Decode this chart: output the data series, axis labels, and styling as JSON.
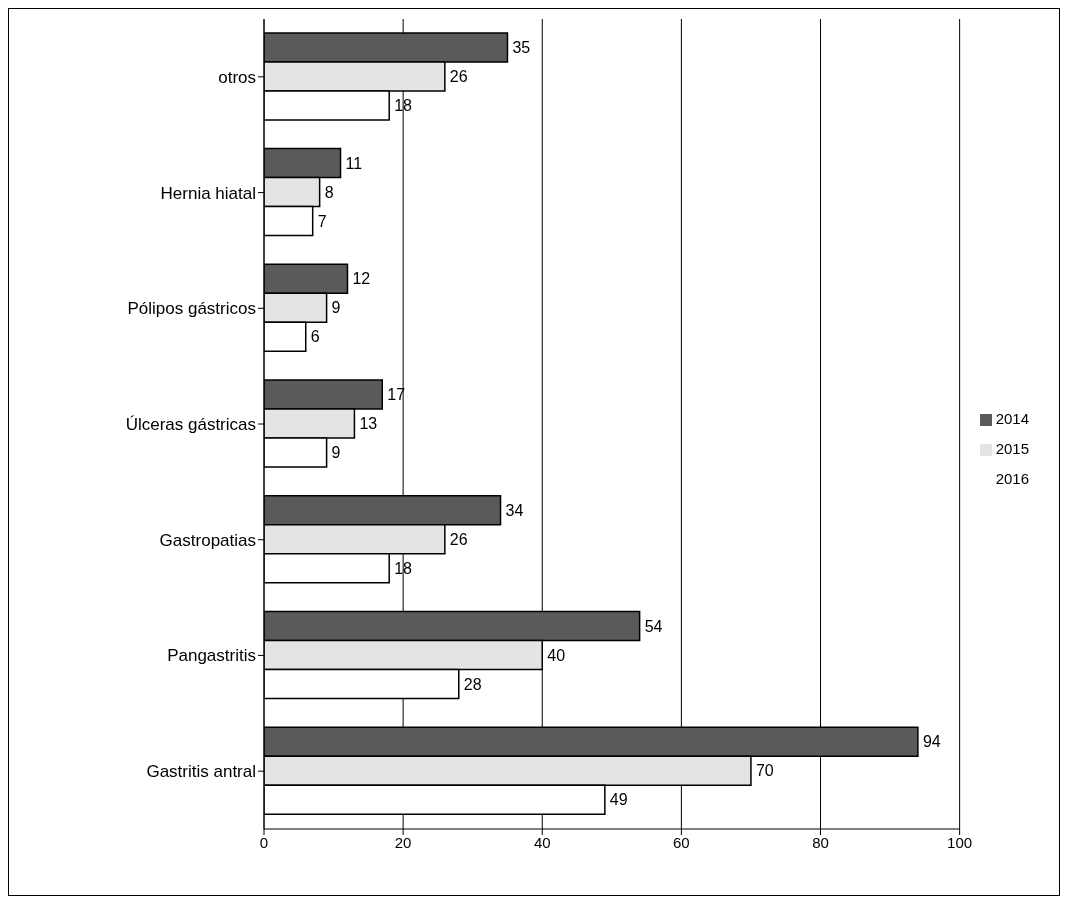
{
  "chart_data": {
    "type": "bar",
    "orientation": "horizontal",
    "categories": [
      "otros",
      "Hernia hiatal",
      "Pólipos gástricos",
      "Úlceras gástricas",
      "Gastropatias",
      "Pangastritis",
      "Gastritis antral"
    ],
    "series": [
      {
        "name": "2014",
        "color": "#5a5a5a",
        "values": [
          35,
          11,
          12,
          17,
          34,
          54,
          94
        ]
      },
      {
        "name": "2015",
        "color": "#e4e4e4",
        "values": [
          26,
          8,
          9,
          13,
          26,
          40,
          70
        ]
      },
      {
        "name": "2016",
        "color": "#ffffff",
        "values": [
          18,
          7,
          6,
          9,
          18,
          28,
          49
        ]
      }
    ],
    "xlim": [
      0,
      100
    ],
    "xticks": [
      0,
      20,
      40,
      60,
      80,
      100
    ],
    "grid": "x",
    "legend": "right",
    "data_labels": true
  }
}
